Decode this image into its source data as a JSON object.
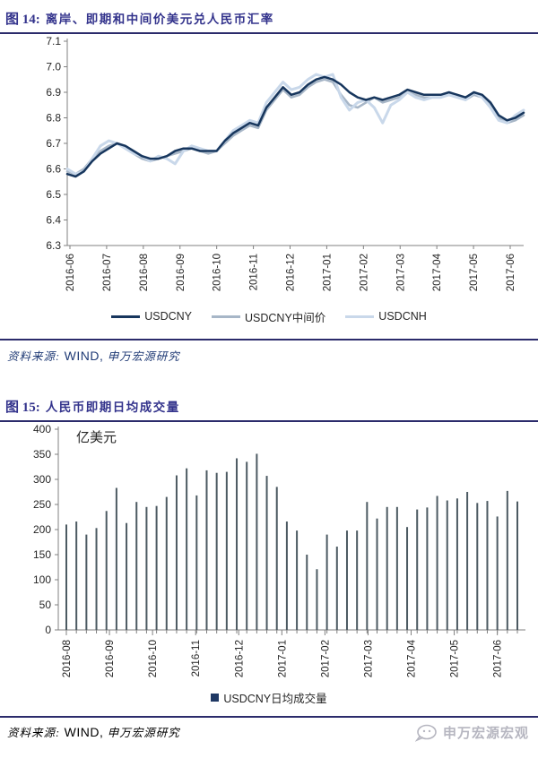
{
  "colors": {
    "title_navy": "#33338c",
    "rule_navy": "#2b2b6b",
    "source_navy": "#1f3a75",
    "axis_gray": "#808080",
    "tick_text": "#262626",
    "watermark_gray": "#b6b6c0",
    "legend2_square": "#1f3864"
  },
  "figure14": {
    "label": "图 14:",
    "title": "离岸、即期和中间价美元兑人民币汇率",
    "source_label": "资料来源:",
    "source_wind": "WIND,",
    "source_rest": "申万宏源研究"
  },
  "figure15": {
    "label": "图 15:",
    "title": "人民币即期日均成交量",
    "source_label": "资料来源:",
    "source_wind": "WIND,",
    "source_rest": "申万宏源研究"
  },
  "footer": {
    "watermark": "申万宏源宏观"
  },
  "chart_data": [
    {
      "type": "line",
      "title": "离岸、即期和中间价美元兑人民币汇率",
      "ylim": [
        6.3,
        7.1
      ],
      "ytick_step": 0.1,
      "grid": false,
      "legend_position": "bottom",
      "x_labels": [
        "2016-06",
        "2016-07",
        "2016-08",
        "2016-09",
        "2016-10",
        "2016-11",
        "2016-12",
        "2017-01",
        "2017-02",
        "2017-03",
        "2017-04",
        "2017-05",
        "2017-06"
      ],
      "series": [
        {
          "name": "USDCNY",
          "color": "#17365d",
          "values": [
            6.58,
            6.57,
            6.59,
            6.63,
            6.66,
            6.68,
            6.7,
            6.69,
            6.67,
            6.65,
            6.64,
            6.64,
            6.65,
            6.67,
            6.68,
            6.68,
            6.67,
            6.67,
            6.67,
            6.71,
            6.74,
            6.76,
            6.78,
            6.77,
            6.84,
            6.88,
            6.92,
            6.89,
            6.9,
            6.93,
            6.95,
            6.96,
            6.95,
            6.93,
            6.9,
            6.88,
            6.87,
            6.88,
            6.87,
            6.88,
            6.89,
            6.91,
            6.9,
            6.89,
            6.89,
            6.89,
            6.9,
            6.89,
            6.88,
            6.9,
            6.89,
            6.86,
            6.81,
            6.79,
            6.8,
            6.82
          ]
        },
        {
          "name": "USDCNY中间价",
          "color": "#a7b6c7",
          "values": [
            6.59,
            6.58,
            6.6,
            6.64,
            6.67,
            6.69,
            6.7,
            6.68,
            6.66,
            6.64,
            6.63,
            6.64,
            6.65,
            6.66,
            6.67,
            6.68,
            6.67,
            6.66,
            6.67,
            6.7,
            6.73,
            6.75,
            6.77,
            6.76,
            6.83,
            6.87,
            6.91,
            6.88,
            6.89,
            6.92,
            6.94,
            6.95,
            6.94,
            6.89,
            6.85,
            6.84,
            6.86,
            6.88,
            6.86,
            6.87,
            6.88,
            6.9,
            6.89,
            6.88,
            6.88,
            6.88,
            6.89,
            6.88,
            6.87,
            6.89,
            6.88,
            6.85,
            6.8,
            6.78,
            6.79,
            6.81
          ]
        },
        {
          "name": "USDCNH",
          "color": "#c9d8ea",
          "values": [
            6.6,
            6.58,
            6.59,
            6.64,
            6.69,
            6.71,
            6.7,
            6.68,
            6.66,
            6.65,
            6.63,
            6.65,
            6.64,
            6.62,
            6.67,
            6.69,
            6.68,
            6.67,
            6.67,
            6.71,
            6.75,
            6.77,
            6.79,
            6.78,
            6.86,
            6.9,
            6.94,
            6.91,
            6.92,
            6.95,
            6.97,
            6.96,
            6.97,
            6.88,
            6.83,
            6.86,
            6.87,
            6.84,
            6.78,
            6.85,
            6.87,
            6.9,
            6.88,
            6.87,
            6.88,
            6.88,
            6.89,
            6.88,
            6.87,
            6.9,
            6.88,
            6.84,
            6.79,
            6.78,
            6.81,
            6.83
          ]
        }
      ]
    },
    {
      "type": "bar",
      "title": "人民币即期日均成交量",
      "unit_label": "亿美元",
      "ylim": [
        0,
        400
      ],
      "ytick_step": 50,
      "grid": false,
      "legend_position": "bottom",
      "x_labels": [
        "2016-08",
        "2016-09",
        "2016-10",
        "2016-11",
        "2016-12",
        "2017-01",
        "2017-02",
        "2017-03",
        "2017-04",
        "2017-05",
        "2017-06"
      ],
      "series": [
        {
          "name": "USDCNY日均成交量",
          "color": "#4c5a62",
          "legend_color": "#1f3864",
          "values": [
            210,
            216,
            190,
            203,
            237,
            283,
            213,
            255,
            245,
            247,
            265,
            308,
            322,
            268,
            318,
            313,
            315,
            342,
            335,
            351,
            307,
            285,
            216,
            198,
            150,
            121,
            190,
            166,
            198,
            198,
            255,
            222,
            245,
            245,
            205,
            240,
            244,
            267,
            258,
            262,
            275,
            253,
            257,
            226,
            277,
            256
          ]
        }
      ]
    }
  ]
}
